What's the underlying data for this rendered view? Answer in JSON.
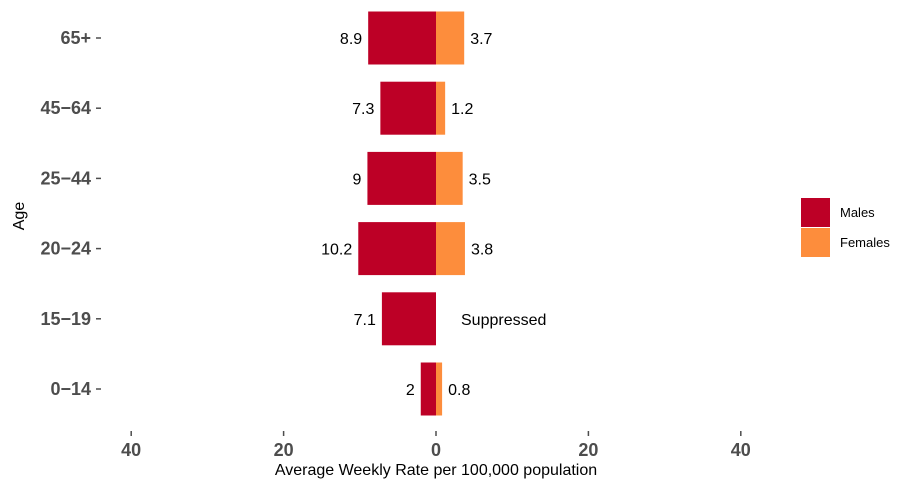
{
  "chart_data": {
    "type": "bar",
    "orientation": "horizontal",
    "layout": "population-pyramid",
    "categories": [
      "65+",
      "45−64",
      "25−44",
      "20−24",
      "15−19",
      "0−14"
    ],
    "series": [
      {
        "name": "Males",
        "color": "#bd0026",
        "values": [
          8.9,
          7.3,
          9,
          10.2,
          7.1,
          2
        ],
        "labels": [
          "8.9",
          "7.3",
          "9",
          "10.2",
          "7.1",
          "2"
        ]
      },
      {
        "name": "Females",
        "color": "#fd8d3c",
        "values": [
          3.7,
          1.2,
          3.5,
          3.8,
          null,
          0.8
        ],
        "labels": [
          "3.7",
          "1.2",
          "3.5",
          "3.8",
          "Suppressed",
          "0.8"
        ]
      }
    ],
    "xlabel": "Average Weekly Rate per 100,000 population",
    "ylabel": "Age",
    "x_ticks": [
      -40,
      -20,
      0,
      20,
      40
    ],
    "x_tick_labels": [
      "40",
      "20",
      "0",
      "20",
      "40"
    ],
    "xlim": [
      -40,
      40
    ],
    "grid": false,
    "legend_position": "right"
  }
}
